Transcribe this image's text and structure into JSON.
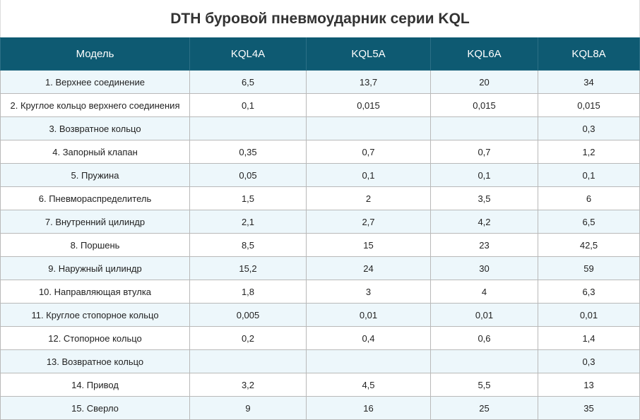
{
  "title": "DTH буровой пневмоударник серии KQL",
  "table": {
    "headers": [
      "Модель",
      "KQL4A",
      "KQL5A",
      "KQL6A",
      "KQL8A"
    ],
    "rows": [
      [
        "1. Верхнее соединение",
        "6,5",
        "13,7",
        "20",
        "34"
      ],
      [
        "2. Круглое кольцо верхнего соединения",
        "0,1",
        "0,015",
        "0,015",
        "0,015"
      ],
      [
        "3. Возвратное кольцо",
        "",
        "",
        "",
        "0,3"
      ],
      [
        "4. Запорный клапан",
        "0,35",
        "0,7",
        "0,7",
        "1,2"
      ],
      [
        "5. Пружина",
        "0,05",
        "0,1",
        "0,1",
        "0,1"
      ],
      [
        "6. Пневмораспределитель",
        "1,5",
        "2",
        "3,5",
        "6"
      ],
      [
        "7. Внутренний цилиндр",
        "2,1",
        "2,7",
        "4,2",
        "6,5"
      ],
      [
        "8. Поршень",
        "8,5",
        "15",
        "23",
        "42,5"
      ],
      [
        "9. Наружный цилиндр",
        "15,2",
        "24",
        "30",
        "59"
      ],
      [
        "10. Направляющая втулка",
        "1,8",
        "3",
        "4",
        "6,3"
      ],
      [
        "11. Круглое стопорное кольцо",
        "0,005",
        "0,01",
        "0,01",
        "0,01"
      ],
      [
        "12. Стопорное кольцо",
        "0,2",
        "0,4",
        "0,6",
        "1,4"
      ],
      [
        "13. Возвратное кольцо",
        "",
        "",
        "",
        "0,3"
      ],
      [
        "14. Привод",
        "3,2",
        "4,5",
        "5,5",
        "13"
      ],
      [
        "15. Сверло",
        "9",
        "16",
        "25",
        "35"
      ]
    ]
  }
}
